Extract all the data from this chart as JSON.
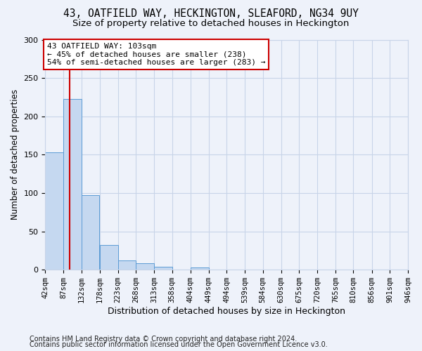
{
  "title1": "43, OATFIELD WAY, HECKINGTON, SLEAFORD, NG34 9UY",
  "title2": "Size of property relative to detached houses in Heckington",
  "xlabel": "Distribution of detached houses by size in Heckington",
  "ylabel": "Number of detached properties",
  "footnote1": "Contains HM Land Registry data © Crown copyright and database right 2024.",
  "footnote2": "Contains public sector information licensed under the Open Government Licence v3.0.",
  "bin_edges": [
    42,
    87,
    132,
    178,
    223,
    268,
    313,
    358,
    404,
    449,
    494,
    539,
    584,
    630,
    675,
    720,
    765,
    810,
    856,
    901,
    946
  ],
  "bar_heights": [
    153,
    223,
    97,
    32,
    12,
    8,
    4,
    0,
    3,
    0,
    0,
    0,
    0,
    0,
    0,
    0,
    0,
    0,
    0,
    0
  ],
  "bar_color": "#c5d8f0",
  "bar_edgecolor": "#5b9bd5",
  "property_size": 103,
  "vline_color": "#cc0000",
  "annotation_text": "43 OATFIELD WAY: 103sqm\n← 45% of detached houses are smaller (238)\n54% of semi-detached houses are larger (283) →",
  "annotation_boxcolor": "white",
  "annotation_edgecolor": "#cc0000",
  "ylim": [
    0,
    300
  ],
  "grid_color": "#c8d4e8",
  "bg_color": "#eef2fa",
  "plot_bg_color": "#eef2fa",
  "title1_fontsize": 10.5,
  "title2_fontsize": 9.5,
  "xlabel_fontsize": 9,
  "ylabel_fontsize": 8.5,
  "tick_fontsize": 7.5,
  "annotation_fontsize": 8,
  "footnote_fontsize": 7
}
